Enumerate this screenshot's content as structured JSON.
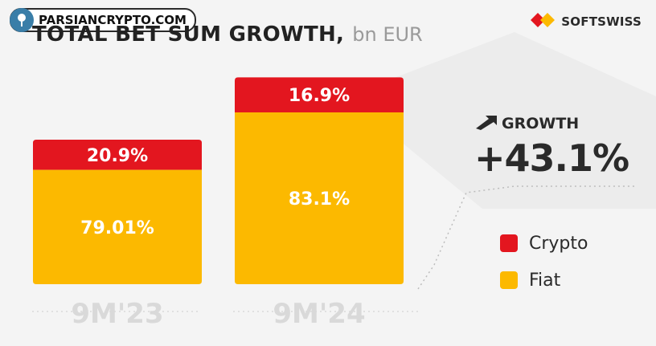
{
  "header": {
    "title_main": "TOTAL BET SUM GROWTH,",
    "title_unit": "bn EUR"
  },
  "watermark": {
    "text": "PARSIANCRYPTO.COM",
    "icon": "tree-logo-icon"
  },
  "brand": {
    "name": "SOFTSWISS",
    "icon": "softswiss-logo-icon"
  },
  "growth": {
    "label": "GROWTH",
    "value": "+43.1%",
    "icon": "arrow-up-right-icon"
  },
  "colors": {
    "crypto": "#e3161f",
    "fiat": "#fcb900",
    "text_dark": "#2a2a2a",
    "category_text": "#d9d9d9",
    "segment_text": "#ffffff"
  },
  "chart_data": {
    "type": "bar",
    "stacked": true,
    "categories": [
      "9M'23",
      "9M'24"
    ],
    "series": [
      {
        "name": "Crypto",
        "values": [
          20.9,
          16.9
        ],
        "labels": [
          "20.9%",
          "16.9%"
        ],
        "color": "#e3161f"
      },
      {
        "name": "Fiat",
        "values": [
          79.01,
          83.1
        ],
        "labels": [
          "79.01%",
          "83.1%"
        ],
        "color": "#fcb900"
      }
    ],
    "totals_relative": [
      1,
      1.431
    ],
    "title": "TOTAL BET SUM GROWTH, bn EUR",
    "legend": "right",
    "grid": false
  }
}
